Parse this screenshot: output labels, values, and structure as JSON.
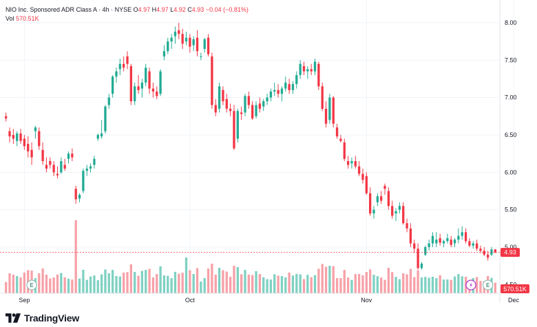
{
  "legend": {
    "symbol_line": "NIO Inc. Sponsored ADR Class A · 4h · NYSE",
    "open_label": "O",
    "open": "4.97",
    "high_label": "H",
    "high": "4.97",
    "low_label": "L",
    "low": "4.92",
    "close_label": "C",
    "close": "4.93",
    "change": "−0.04 (−0.81%)",
    "vol_label": "Vol",
    "vol": "570.51K"
  },
  "price_badge": "4.93",
  "vol_badge": "570.51K",
  "brand": "TradingView",
  "event_marker": "E",
  "colors": {
    "up": "#22ab94",
    "down": "#f23645",
    "vol_up": "#7fd1c2",
    "vol_down": "#f7a1a8",
    "grid": "#f0f3fa"
  },
  "chart_data": {
    "type": "candlestick",
    "title": "NIO Inc. Sponsored ADR Class A · 4h · NYSE",
    "y_ticks": [
      "8.00",
      "7.50",
      "7.00",
      "6.50",
      "6.00",
      "5.50",
      "5.00",
      "4.50"
    ],
    "ylim": [
      4.42,
      8.12
    ],
    "x_ticks": [
      {
        "label": "Sep",
        "index": 5
      },
      {
        "label": "Oct",
        "index": 50
      },
      {
        "label": "Nov",
        "index": 98
      },
      {
        "label": "Dec",
        "index": 138
      }
    ],
    "last_price": 4.93,
    "earnings_markers_at_index": [
      7,
      131
    ],
    "candles": [
      [
        6.75,
        6.8,
        6.68,
        6.72
      ],
      [
        6.55,
        6.6,
        6.4,
        6.48
      ],
      [
        6.5,
        6.58,
        6.38,
        6.45
      ],
      [
        6.42,
        6.55,
        6.35,
        6.52
      ],
      [
        6.52,
        6.58,
        6.38,
        6.42
      ],
      [
        6.45,
        6.5,
        6.3,
        6.35
      ],
      [
        6.38,
        6.48,
        6.2,
        6.28
      ],
      [
        6.3,
        6.4,
        6.1,
        6.2
      ],
      [
        6.55,
        6.62,
        6.45,
        6.6
      ],
      [
        6.55,
        6.6,
        6.3,
        6.35
      ],
      [
        6.3,
        6.4,
        6.1,
        6.15
      ],
      [
        6.1,
        6.2,
        6.0,
        6.05
      ],
      [
        6.15,
        6.2,
        6.05,
        6.1
      ],
      [
        6.1,
        6.15,
        5.95,
        6.0
      ],
      [
        5.98,
        6.08,
        5.92,
        5.96
      ],
      [
        6.0,
        6.2,
        5.98,
        6.15
      ],
      [
        6.1,
        6.18,
        6.02,
        6.05
      ],
      [
        6.18,
        6.28,
        6.12,
        6.25
      ],
      [
        6.25,
        6.32,
        6.15,
        6.2
      ],
      [
        5.78,
        5.82,
        5.58,
        5.64
      ],
      [
        5.65,
        5.72,
        5.6,
        5.7
      ],
      [
        5.75,
        6.05,
        5.72,
        6.02
      ],
      [
        6.02,
        6.1,
        5.95,
        6.05
      ],
      [
        6.05,
        6.12,
        6.0,
        6.08
      ],
      [
        6.1,
        6.22,
        6.05,
        6.18
      ],
      [
        6.45,
        6.52,
        6.42,
        6.5
      ],
      [
        6.48,
        6.7,
        6.45,
        6.52
      ],
      [
        6.55,
        6.9,
        6.52,
        6.88
      ],
      [
        6.9,
        7.05,
        6.85,
        7.0
      ],
      [
        7.05,
        7.3,
        7.0,
        7.28
      ],
      [
        7.28,
        7.4,
        7.2,
        7.35
      ],
      [
        7.38,
        7.52,
        7.3,
        7.45
      ],
      [
        7.45,
        7.55,
        7.35,
        7.4
      ],
      [
        7.55,
        7.62,
        7.38,
        7.45
      ],
      [
        7.42,
        7.45,
        6.9,
        6.95
      ],
      [
        6.95,
        7.2,
        6.9,
        7.15
      ],
      [
        7.15,
        7.3,
        7.05,
        7.1
      ],
      [
        7.12,
        7.25,
        7.0,
        7.2
      ],
      [
        7.2,
        7.45,
        7.15,
        7.4
      ],
      [
        7.35,
        7.4,
        7.05,
        7.12
      ],
      [
        7.12,
        7.2,
        7.0,
        7.08
      ],
      [
        7.08,
        7.15,
        6.98,
        7.02
      ],
      [
        7.05,
        7.38,
        7.02,
        7.35
      ],
      [
        7.55,
        7.7,
        7.5,
        7.62
      ],
      [
        7.62,
        7.8,
        7.58,
        7.75
      ],
      [
        7.75,
        7.85,
        7.65,
        7.8
      ],
      [
        7.82,
        7.95,
        7.72,
        7.88
      ],
      [
        7.9,
        8.0,
        7.78,
        7.85
      ],
      [
        7.85,
        7.92,
        7.65,
        7.72
      ],
      [
        7.75,
        7.88,
        7.7,
        7.8
      ],
      [
        7.8,
        7.85,
        7.6,
        7.68
      ],
      [
        7.7,
        7.82,
        7.62,
        7.78
      ],
      [
        7.8,
        7.9,
        7.55,
        7.62
      ],
      [
        7.55,
        7.6,
        7.5,
        7.55
      ],
      [
        7.65,
        7.8,
        7.6,
        7.78
      ],
      [
        7.8,
        7.85,
        7.55,
        7.58
      ],
      [
        7.55,
        7.6,
        6.85,
        6.9
      ],
      [
        6.9,
        6.98,
        6.75,
        6.8
      ],
      [
        6.85,
        7.2,
        6.8,
        7.15
      ],
      [
        7.1,
        7.15,
        6.9,
        6.95
      ],
      [
        6.98,
        7.05,
        6.8,
        6.85
      ],
      [
        6.85,
        6.92,
        6.75,
        6.82
      ],
      [
        6.82,
        6.9,
        6.3,
        6.32
      ],
      [
        6.45,
        6.85,
        6.4,
        6.82
      ],
      [
        6.8,
        6.88,
        6.7,
        6.78
      ],
      [
        6.8,
        7.05,
        6.75,
        7.02
      ],
      [
        7.02,
        7.08,
        6.85,
        6.9
      ],
      [
        6.9,
        6.95,
        6.7,
        6.72
      ],
      [
        6.75,
        6.95,
        6.72,
        6.9
      ],
      [
        6.92,
        7.0,
        6.8,
        6.85
      ],
      [
        6.88,
        6.98,
        6.82,
        6.95
      ],
      [
        6.95,
        7.05,
        6.9,
        7.0
      ],
      [
        7.0,
        7.12,
        6.95,
        7.08
      ],
      [
        7.08,
        7.2,
        7.02,
        7.1
      ],
      [
        7.1,
        7.18,
        7.0,
        7.05
      ],
      [
        7.05,
        7.15,
        6.95,
        7.12
      ],
      [
        7.12,
        7.28,
        7.08,
        7.2
      ],
      [
        7.18,
        7.25,
        7.05,
        7.1
      ],
      [
        7.1,
        7.22,
        7.05,
        7.18
      ],
      [
        7.18,
        7.35,
        7.12,
        7.3
      ],
      [
        7.3,
        7.5,
        7.25,
        7.45
      ],
      [
        7.42,
        7.48,
        7.3,
        7.35
      ],
      [
        7.35,
        7.42,
        7.25,
        7.38
      ],
      [
        7.38,
        7.45,
        7.3,
        7.35
      ],
      [
        7.35,
        7.52,
        7.3,
        7.48
      ],
      [
        7.45,
        7.48,
        7.1,
        7.15
      ],
      [
        7.15,
        7.2,
        6.82,
        6.85
      ],
      [
        6.85,
        6.95,
        6.6,
        6.65
      ],
      [
        6.7,
        7.05,
        6.65,
        7.0
      ],
      [
        7.0,
        7.02,
        6.6,
        6.65
      ],
      [
        6.6,
        6.65,
        6.45,
        6.48
      ],
      [
        6.45,
        6.5,
        6.4,
        6.42
      ],
      [
        6.4,
        6.45,
        6.15,
        6.18
      ],
      [
        6.15,
        6.22,
        6.05,
        6.1
      ],
      [
        6.12,
        6.2,
        6.05,
        6.15
      ],
      [
        6.15,
        6.22,
        6.05,
        6.08
      ],
      [
        6.08,
        6.15,
        5.95,
        5.98
      ],
      [
        5.98,
        6.05,
        5.85,
        5.9
      ],
      [
        5.95,
        6.0,
        5.7,
        5.72
      ],
      [
        5.72,
        5.8,
        5.42,
        5.45
      ],
      [
        5.45,
        5.55,
        5.38,
        5.5
      ],
      [
        5.6,
        5.72,
        5.55,
        5.68
      ],
      [
        5.68,
        5.75,
        5.58,
        5.62
      ],
      [
        5.82,
        5.85,
        5.7,
        5.78
      ],
      [
        5.75,
        5.8,
        5.5,
        5.55
      ],
      [
        5.55,
        5.62,
        5.38,
        5.42
      ],
      [
        5.45,
        5.52,
        5.35,
        5.48
      ],
      [
        5.5,
        5.6,
        5.45,
        5.55
      ],
      [
        5.55,
        5.6,
        5.3,
        5.32
      ],
      [
        5.32,
        5.38,
        5.2,
        5.25
      ],
      [
        5.25,
        5.32,
        5.0,
        5.05
      ],
      [
        5.05,
        5.1,
        4.92,
        4.98
      ],
      [
        4.98,
        5.05,
        4.7,
        4.72
      ],
      [
        4.72,
        4.8,
        4.7,
        4.78
      ],
      [
        4.9,
        5.02,
        4.88,
        5.0
      ],
      [
        5.0,
        5.1,
        4.95,
        5.05
      ],
      [
        5.05,
        5.2,
        5.0,
        5.15
      ],
      [
        5.05,
        5.2,
        5.0,
        5.1
      ],
      [
        5.12,
        5.18,
        5.02,
        5.06
      ],
      [
        5.05,
        5.1,
        5.0,
        5.08
      ],
      [
        5.08,
        5.18,
        5.05,
        5.12
      ],
      [
        5.1,
        5.15,
        5.0,
        5.03
      ],
      [
        5.05,
        5.12,
        5.0,
        5.1
      ],
      [
        5.1,
        5.25,
        5.05,
        5.15
      ],
      [
        5.15,
        5.28,
        5.1,
        5.2
      ],
      [
        5.2,
        5.25,
        5.05,
        5.08
      ],
      [
        5.08,
        5.12,
        5.0,
        5.02
      ],
      [
        5.02,
        5.08,
        4.98,
        5.05
      ],
      [
        5.05,
        5.1,
        4.95,
        4.98
      ],
      [
        4.98,
        5.02,
        4.92,
        4.95
      ],
      [
        4.95,
        5.0,
        4.88,
        4.9
      ],
      [
        4.9,
        4.95,
        4.82,
        4.86
      ],
      [
        4.9,
        5.0,
        4.88,
        4.97
      ],
      [
        4.97,
        4.97,
        4.92,
        4.93
      ]
    ]
  }
}
